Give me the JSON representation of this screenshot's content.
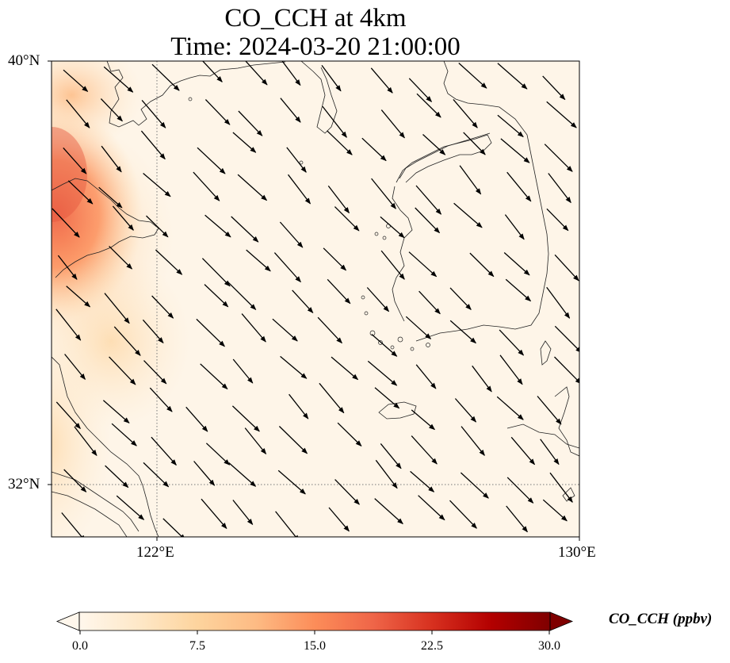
{
  "title_line1": "CO_CCH at 4km",
  "title_line2": "Time: 2024-03-20 21:00:00",
  "map": {
    "lat_labels": [
      "40°N",
      "32°N"
    ],
    "lon_labels": [
      "122°E",
      "130°E"
    ],
    "extent": {
      "lon_min": 120,
      "lon_max": 130,
      "lat_min": 31,
      "lat_max": 40
    },
    "gridlines": {
      "lon": [
        122
      ],
      "lat": [
        32
      ],
      "style": "dotted"
    },
    "field": {
      "variable": "CO_CCH",
      "level": "4km",
      "max_region": "west edge near 36-38°N",
      "colormap": "OrRd"
    },
    "wind_vectors": "northwesterly flow, arrows pointing to south-east"
  },
  "colorbar": {
    "label": "CO_CCH (ppbv)",
    "ticks": [
      "0.0",
      "7.5",
      "15.0",
      "22.5",
      "30.0"
    ],
    "min": 0,
    "max": 30,
    "colors": [
      "#fff7ec",
      "#fee8c8",
      "#fdd49e",
      "#fdbb84",
      "#fc8d59",
      "#ef6548",
      "#d7301f",
      "#b30000",
      "#7f0000"
    ],
    "extend": "both"
  }
}
